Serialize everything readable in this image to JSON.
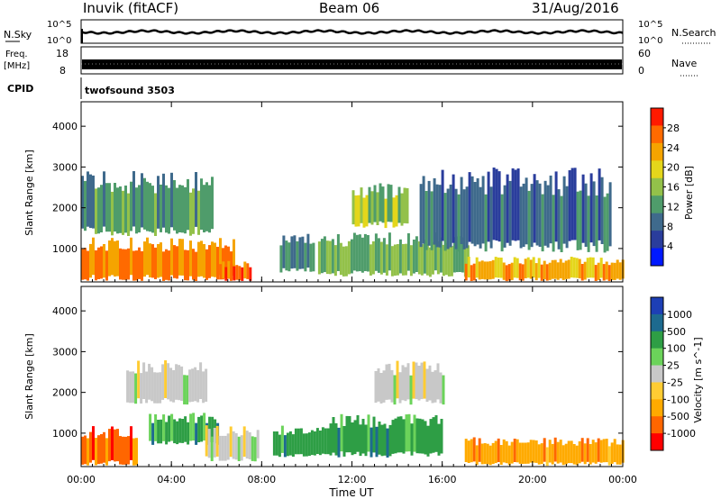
{
  "header": {
    "station": "Inuvik (fitACF)",
    "beam": "Beam 06",
    "date": "31/Aug/2016"
  },
  "top_panels": {
    "nsky_label": "N.Sky",
    "nsearch_label": "N.Search",
    "noise_ticks": [
      "10^5",
      "10^0"
    ],
    "freq_label_line1": "Freq.",
    "freq_label_line2": "[MHz]",
    "freq_ticks": [
      "18",
      "8"
    ],
    "nave_label": "Nave",
    "nave_ticks": [
      "60",
      "0"
    ],
    "cpid_label": "CPID",
    "cpid_value": "twofsound 3503"
  },
  "colors": {
    "power_scale": [
      "#0019ff",
      "#2a3d9c",
      "#3f6a8c",
      "#4f9c6b",
      "#93c14a",
      "#e4d61b",
      "#f5a400",
      "#ff6a00",
      "#ff1a00"
    ],
    "velocity_scale": [
      "#ff0000",
      "#ff6600",
      "#ffaa00",
      "#ffcc33",
      "#c8c8c8",
      "#6bd35a",
      "#2e9e45",
      "#1d6a8f",
      "#1d3fb5"
    ],
    "ground_scatter": "#bebebe"
  },
  "chart_data": [
    {
      "type": "heatmap",
      "panel": "power",
      "xlabel": "",
      "ylabel": "Slant Range [km]",
      "xlim": [
        "00:00",
        "24:00"
      ],
      "ylim": [
        180,
        4600
      ],
      "yticks": [
        1000,
        2000,
        3000,
        4000
      ],
      "colorbar": {
        "label": "Power [dB]",
        "range": [
          0,
          32
        ],
        "tick_values": [
          4,
          8,
          12,
          16,
          20,
          24,
          28
        ],
        "tick_labels": [
          "4",
          "8",
          "12",
          "16",
          "20",
          "24",
          "28"
        ]
      },
      "regions": [
        {
          "t": [
            0.0,
            6.8
          ],
          "range": [
            200,
            1300
          ],
          "value": 26
        },
        {
          "t": [
            0.0,
            5.8
          ],
          "range": [
            1300,
            2900
          ],
          "value": 12
        },
        {
          "t": [
            6.0,
            7.5
          ],
          "range": [
            200,
            700
          ],
          "value": 28
        },
        {
          "t": [
            8.8,
            10.3
          ],
          "range": [
            400,
            1400
          ],
          "value": 10
        },
        {
          "t": [
            10.5,
            17.2
          ],
          "range": [
            300,
            1400
          ],
          "value": 14
        },
        {
          "t": [
            12.0,
            14.5
          ],
          "range": [
            1500,
            2600
          ],
          "value": 16
        },
        {
          "t": [
            17.0,
            24.0
          ],
          "range": [
            200,
            800
          ],
          "value": 24
        },
        {
          "t": [
            15.0,
            23.5
          ],
          "range": [
            900,
            3000
          ],
          "value": 8
        }
      ]
    },
    {
      "type": "heatmap",
      "panel": "velocity",
      "xlabel": "Time UT",
      "ylabel": "Slant Range [km]",
      "xlim": [
        "00:00",
        "24:00"
      ],
      "xticks": [
        "00:00",
        "04:00",
        "08:00",
        "12:00",
        "16:00",
        "20:00",
        "00:00"
      ],
      "ylim": [
        180,
        4600
      ],
      "yticks": [
        1000,
        2000,
        3000,
        4000
      ],
      "colorbar": {
        "label": "Velocity [m s^-1]",
        "tick_labels": [
          "1000",
          "500",
          "100",
          "25",
          "-25",
          "-100",
          "-500",
          "-1000"
        ]
      },
      "regions": [
        {
          "t": [
            0.0,
            2.5
          ],
          "range": [
            200,
            1200
          ],
          "value": -500
        },
        {
          "t": [
            2.0,
            5.5
          ],
          "range": [
            1700,
            2800
          ],
          "value": 0
        },
        {
          "t": [
            3.0,
            6.0
          ],
          "range": [
            700,
            1500
          ],
          "value": 200
        },
        {
          "t": [
            5.5,
            7.8
          ],
          "range": [
            300,
            1200
          ],
          "value": 0
        },
        {
          "t": [
            8.5,
            11.0
          ],
          "range": [
            400,
            1200
          ],
          "value": 200
        },
        {
          "t": [
            11.0,
            16.0
          ],
          "range": [
            400,
            1500
          ],
          "value": 300
        },
        {
          "t": [
            13.0,
            16.0
          ],
          "range": [
            1700,
            2800
          ],
          "value": 0
        },
        {
          "t": [
            17.0,
            24.0
          ],
          "range": [
            200,
            900
          ],
          "value": -300
        }
      ]
    }
  ]
}
